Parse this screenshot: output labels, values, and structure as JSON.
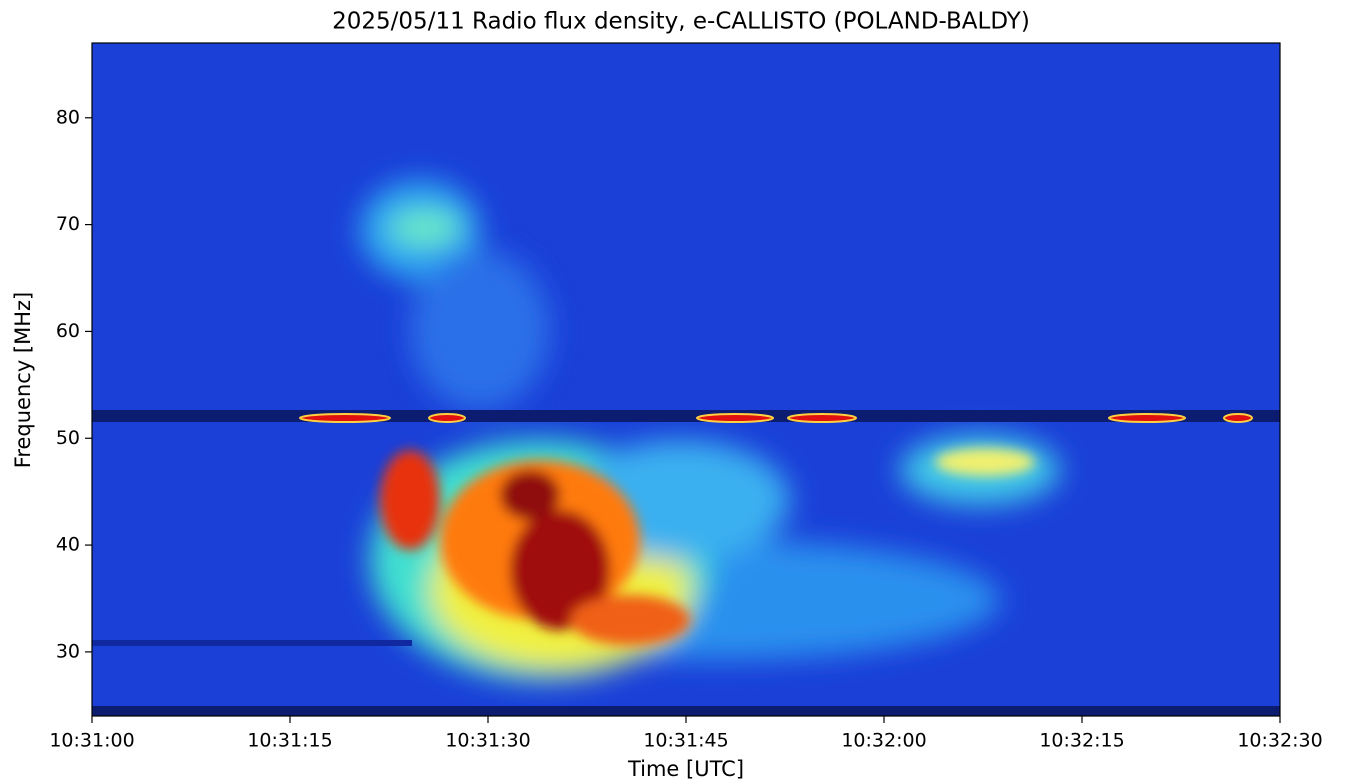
{
  "chart_data": {
    "type": "spectrogram",
    "title": "2025/05/11  Radio flux density, e-CALLISTO (POLAND-BALDY)",
    "xlabel": "Time [UTC]",
    "ylabel": "Frequency [MHz]",
    "xlim": [
      "10:31:00",
      "10:32:30"
    ],
    "xticks": [
      "10:31:00",
      "10:31:15",
      "10:31:30",
      "10:31:45",
      "10:32:00",
      "10:32:15",
      "10:32:30"
    ],
    "ylim": [
      24,
      87
    ],
    "yticks": [
      30,
      40,
      50,
      60,
      70,
      80
    ]
  }
}
